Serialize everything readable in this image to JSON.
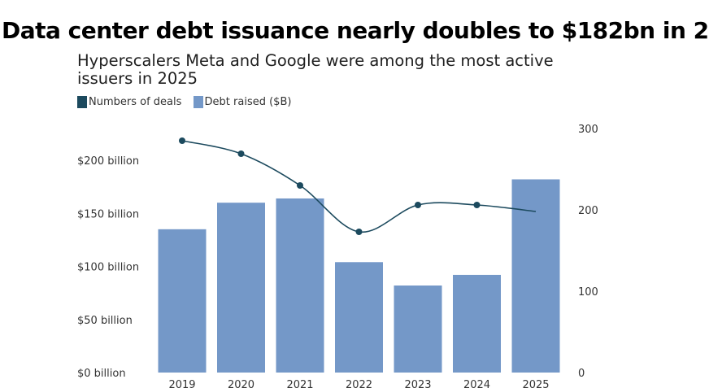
{
  "headline": "Data center debt issuance nearly doubles to $182bn in 2",
  "subtitle": "Hyperscalers Meta and Google were among the most active issuers in 2025",
  "legend": [
    {
      "label": "Numbers of deals",
      "color": "#1c4a5e"
    },
    {
      "label": "Debt raised ($B)",
      "color": "#7498c8"
    }
  ],
  "chart_data": {
    "type": "bar",
    "categories": [
      "2019",
      "2020",
      "2021",
      "2022",
      "2023",
      "2024",
      "2025"
    ],
    "series": [
      {
        "name": "Debt raised ($B)",
        "type": "bar",
        "axis": "left",
        "values": [
          135,
          160,
          164,
          104,
          82,
          92,
          182
        ],
        "color": "#7498c8"
      },
      {
        "name": "Numbers of deals",
        "type": "line",
        "axis": "right",
        "values": [
          285,
          269,
          230,
          173,
          206,
          206,
          198
        ],
        "color": "#1c4a5e",
        "markers": [
          true,
          true,
          true,
          true,
          true,
          true,
          false
        ]
      }
    ],
    "y_left": {
      "ticks": [
        0,
        50,
        100,
        150,
        200
      ],
      "tick_labels": [
        "$0 billion",
        "$50 billion",
        "$100 billion",
        "$150 billion",
        "$200 billion"
      ],
      "ylim": [
        0,
        230
      ]
    },
    "y_right": {
      "ticks": [
        0,
        100,
        200,
        300
      ],
      "tick_labels": [
        "0",
        "100",
        "200",
        "300"
      ],
      "ylim": [
        0,
        300
      ]
    },
    "grid": false,
    "legend_position": "top-left"
  }
}
